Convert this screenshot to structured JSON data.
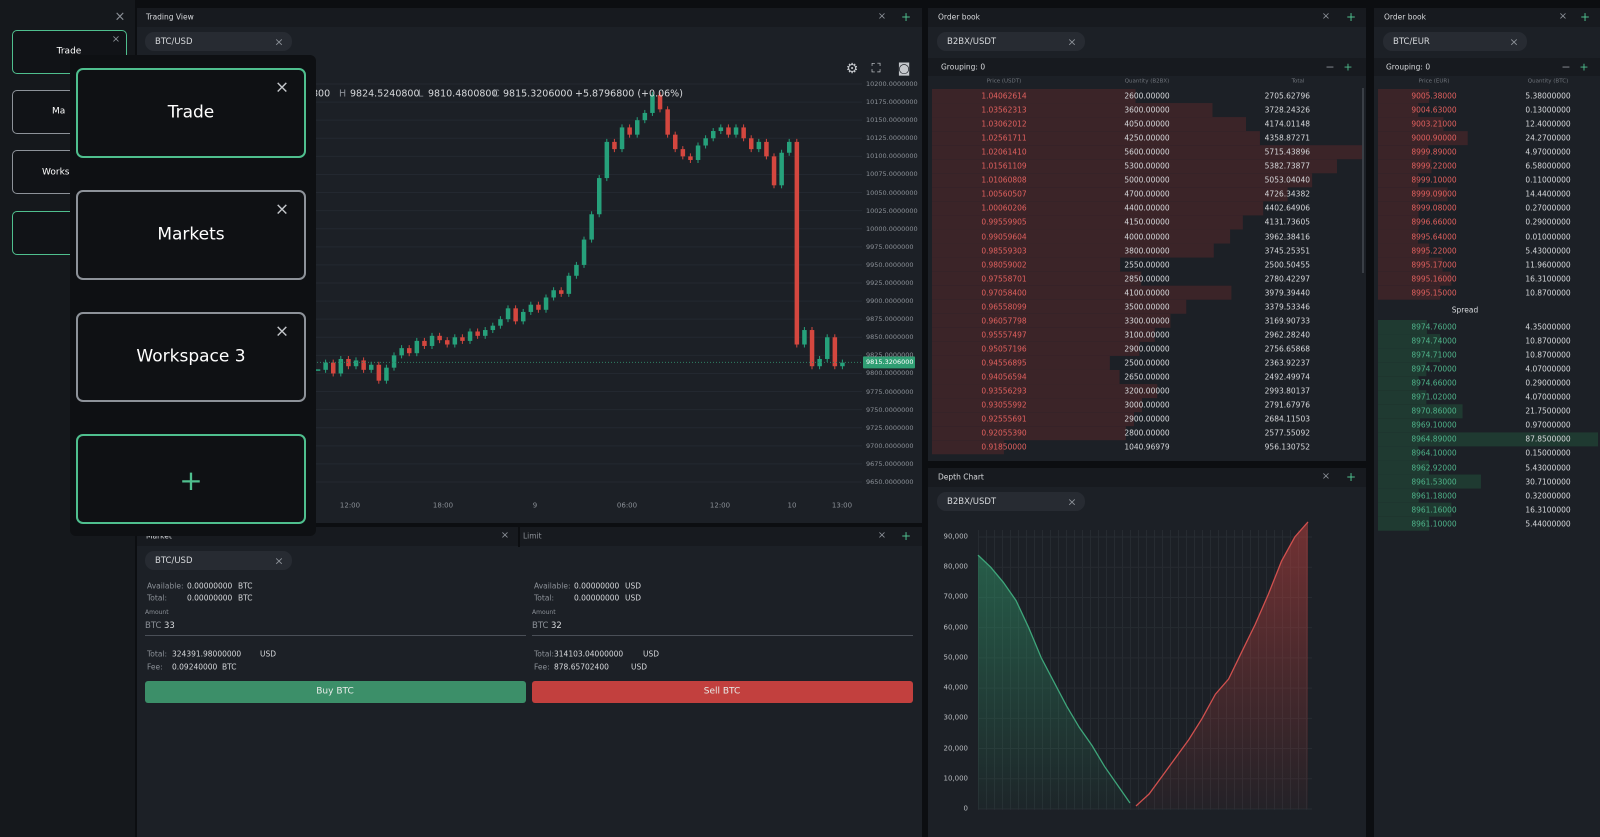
{
  "sidebar": {
    "workspaces": [
      "Trade",
      "Ma",
      "Works"
    ]
  },
  "workspace_popup": {
    "items": [
      "Trade",
      "Markets",
      "Workspace 3"
    ]
  },
  "trading_view": {
    "title": "Trading View",
    "tab": "BTC/USD",
    "ohlc": {
      "open": "800",
      "high_label": "H",
      "high": "9824.5240800",
      "low_label": "L",
      "low": "9810.4800800",
      "close_label": "C",
      "close": "9815.3206000",
      "change": "+5.8796800 (+0.06%)"
    },
    "chart": {
      "type": "candlestick",
      "closes": [
        9805,
        9815,
        9800,
        9820,
        9810,
        9818,
        9805,
        9812,
        9790,
        9808,
        9825,
        9835,
        9828,
        9845,
        9838,
        9852,
        9846,
        9840,
        9850,
        9845,
        9858,
        9852,
        9860,
        9866,
        9875,
        9890,
        9872,
        9885,
        9895,
        9888,
        9905,
        9915,
        9910,
        9935,
        9950,
        9985,
        10020,
        10070,
        10120,
        10110,
        10140,
        10130,
        10150,
        10160,
        10185,
        10165,
        10130,
        10110,
        10100,
        10095,
        10115,
        10125,
        10135,
        10140,
        10130,
        10140,
        10125,
        10110,
        10120,
        10100,
        10060,
        10105,
        10120,
        9840,
        9860,
        9810,
        9820,
        9850,
        9810,
        9815
      ],
      "ylim": [
        9650,
        10200
      ],
      "yticks": [
        {
          "value": 10200,
          "label": "10200.0000000"
        },
        {
          "value": 10175,
          "label": "10175.0000000"
        },
        {
          "value": 10150,
          "label": "10150.0000000"
        },
        {
          "value": 10125,
          "label": "10125.0000000"
        },
        {
          "value": 10100,
          "label": "10100.0000000"
        },
        {
          "value": 10075,
          "label": "10075.0000000"
        },
        {
          "value": 10050,
          "label": "10050.0000000"
        },
        {
          "value": 10025,
          "label": "10025.0000000"
        },
        {
          "value": 10000,
          "label": "10000.0000000"
        },
        {
          "value": 9975,
          "label": "9975.0000000"
        },
        {
          "value": 9950,
          "label": "9950.0000000"
        },
        {
          "value": 9925,
          "label": "9925.0000000"
        },
        {
          "value": 9900,
          "label": "9900.0000000"
        },
        {
          "value": 9875,
          "label": "9875.0000000"
        },
        {
          "value": 9850,
          "label": "9850.0000000"
        },
        {
          "value": 9825,
          "label": "9825.0000000"
        },
        {
          "value": 9800,
          "label": "9800.0000000"
        },
        {
          "value": 9775,
          "label": "9775.0000000"
        },
        {
          "value": 9750,
          "label": "9750.0000000"
        },
        {
          "value": 9725,
          "label": "9725.0000000"
        },
        {
          "value": 9700,
          "label": "9700.0000000"
        },
        {
          "value": 9675,
          "label": "9675.0000000"
        },
        {
          "value": 9650,
          "label": "9650.0000000"
        }
      ],
      "time_labels": [
        "12:00",
        "18:00",
        "9",
        "06:00",
        "12:00",
        "10",
        "13:00"
      ],
      "last_price": {
        "value": 9815.3206,
        "label": "9815.3206000"
      }
    }
  },
  "market": {
    "title": "Market",
    "tab": "BTC/USD",
    "limit_title": "Limit",
    "buy": {
      "available_label": "Available:",
      "available": "0.00000000",
      "available_unit": "BTC",
      "total_label": "Total:",
      "total": "0.00000000",
      "total_unit": "BTC",
      "amount_label": "Amount",
      "amount_unit": "BTC",
      "amount": "33",
      "sum_label": "Total:",
      "sum": "324391.98000000",
      "sum_unit": "USD",
      "fee_label": "Fee:",
      "fee": "0.09240000",
      "fee_unit": "BTC",
      "button": "Buy BTC"
    },
    "sell": {
      "available_label": "Available:",
      "available": "0.00000000",
      "available_unit": "USD",
      "total_label": "Total:",
      "total": "0.00000000",
      "total_unit": "USD",
      "amount_label": "Amount",
      "amount_unit": "BTC",
      "amount": "32",
      "sum_label": "Total:",
      "sum": "314103.04000000",
      "sum_unit": "USD",
      "fee_label": "Fee:",
      "fee": "878.65702400",
      "fee_unit": "USD",
      "button": "Sell BTC"
    }
  },
  "order_book_1": {
    "title": "Order book",
    "tab": "B2BX/USDT",
    "grouping": "Grouping: 0",
    "headers": [
      "Price (USDT)",
      "Quantity (B2BX)",
      "Total"
    ],
    "rows": [
      [
        "1.04062614",
        "2600.00000",
        "2705.62796"
      ],
      [
        "1.03562313",
        "3600.00000",
        "3728.24326"
      ],
      [
        "1.03062012",
        "4050.00000",
        "4174.01148"
      ],
      [
        "1.02561711",
        "4250.00000",
        "4358.87271"
      ],
      [
        "1.02061410",
        "5600.00000",
        "5715.43896"
      ],
      [
        "1.01561109",
        "5300.00000",
        "5382.73877"
      ],
      [
        "1.01060808",
        "5000.00000",
        "5053.04040"
      ],
      [
        "1.00560507",
        "4700.00000",
        "4726.34382"
      ],
      [
        "1.00060206",
        "4400.00000",
        "4402.64906"
      ],
      [
        "0.99559905",
        "4150.00000",
        "4131.73605"
      ],
      [
        "0.99059604",
        "4000.00000",
        "3962.38416"
      ],
      [
        "0.98559303",
        "3800.00000",
        "3745.25351"
      ],
      [
        "0.98059002",
        "2550.00000",
        "2500.50455"
      ],
      [
        "0.97558701",
        "2850.00000",
        "2780.42297"
      ],
      [
        "0.97058400",
        "4100.00000",
        "3979.39440"
      ],
      [
        "0.96558099",
        "3500.00000",
        "3379.53346"
      ],
      [
        "0.96057798",
        "3300.00000",
        "3169.90733"
      ],
      [
        "0.95557497",
        "3100.00000",
        "2962.28240"
      ],
      [
        "0.95057196",
        "2900.00000",
        "2756.65868"
      ],
      [
        "0.94556895",
        "2500.00000",
        "2363.92237"
      ],
      [
        "0.94056594",
        "2650.00000",
        "2492.49974"
      ],
      [
        "0.93556293",
        "3200.00000",
        "2993.80137"
      ],
      [
        "0.93055992",
        "3000.00000",
        "2791.67976"
      ],
      [
        "0.92555691",
        "2900.00000",
        "2684.11503"
      ],
      [
        "0.92055390",
        "2800.00000",
        "2577.55092"
      ],
      [
        "0.91850000",
        "1040.96979",
        "956.130752"
      ]
    ]
  },
  "depth_chart": {
    "title": "Depth Chart",
    "tab": "B2BX/USDT",
    "chart": {
      "type": "depth",
      "bids": [
        84000,
        80000,
        75000,
        69000,
        60000,
        50000,
        42000,
        34000,
        27000,
        21000,
        14000,
        8000,
        2000
      ],
      "asks": [
        1000,
        5000,
        11000,
        17000,
        23000,
        30000,
        38000,
        43000,
        52000,
        61000,
        71000,
        82000,
        90000,
        95000
      ],
      "ylim": [
        0,
        90000
      ],
      "yticks": [
        0,
        {
          "value": 10000,
          "label": "10,000"
        },
        {
          "value": 20000,
          "label": "20,000"
        },
        {
          "value": 30000,
          "label": "30,000"
        },
        {
          "value": 40000,
          "label": "40,000"
        },
        {
          "value": 50000,
          "label": "50,000"
        },
        {
          "value": 60000,
          "label": "60,000"
        },
        {
          "value": 70000,
          "label": "70,000"
        },
        {
          "value": 80000,
          "label": "80,000"
        },
        {
          "value": 90000,
          "label": "90,000"
        }
      ]
    }
  },
  "order_book_2": {
    "title": "Order book",
    "tab": "BTC/EUR",
    "grouping": "Grouping: 0",
    "headers": [
      "Price (EUR)",
      "Quantity (BTC)"
    ],
    "asks": [
      [
        "9005.38000",
        "5.38000000"
      ],
      [
        "9004.63000",
        "0.13000000"
      ],
      [
        "9003.21000",
        "12.4000000"
      ],
      [
        "9000.90000",
        "24.2700000"
      ],
      [
        "8999.89000",
        "4.97000000"
      ],
      [
        "8999.22000",
        "6.58000000"
      ],
      [
        "8999.10000",
        "0.11000000"
      ],
      [
        "8999.09000",
        "14.4400000"
      ],
      [
        "8999.08000",
        "0.27000000"
      ],
      [
        "8996.66000",
        "0.29000000"
      ],
      [
        "8995.64000",
        "0.01000000"
      ],
      [
        "8995.22000",
        "5.43000000"
      ],
      [
        "8995.17000",
        "11.9600000"
      ],
      [
        "8995.16000",
        "16.3100000"
      ],
      [
        "8995.15000",
        "10.8700000"
      ]
    ],
    "spread": "Spread",
    "bids": [
      [
        "8974.76000",
        "4.35000000"
      ],
      [
        "8974.74000",
        "10.8700000"
      ],
      [
        "8974.71000",
        "10.8700000"
      ],
      [
        "8974.70000",
        "4.07000000"
      ],
      [
        "8974.66000",
        "0.29000000"
      ],
      [
        "8971.02000",
        "4.07000000"
      ],
      [
        "8970.86000",
        "21.7500000"
      ],
      [
        "8969.10000",
        "0.97000000"
      ],
      [
        "8964.89000",
        "87.8500000"
      ],
      [
        "8964.10000",
        "0.15000000"
      ],
      [
        "8962.92000",
        "5.43000000"
      ],
      [
        "8961.53000",
        "30.7100000"
      ],
      [
        "8961.18000",
        "0.32000000"
      ],
      [
        "8961.16000",
        "16.3100000"
      ],
      [
        "8961.10000",
        "5.44000000"
      ]
    ]
  }
}
